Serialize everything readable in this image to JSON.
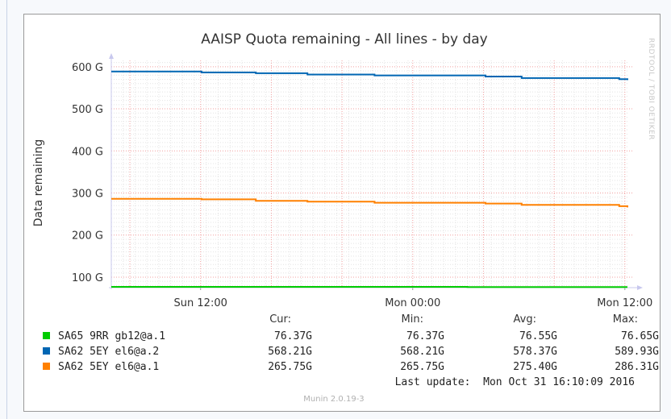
{
  "chart_data": {
    "type": "line",
    "title": "AAISP Quota remaining - All lines - by day",
    "ylabel": "Data remaining",
    "xlabel": "",
    "ylim": [
      75,
      615
    ],
    "xlim": [
      0,
      100
    ],
    "yticks": [
      {
        "value": 100,
        "label": "100 G"
      },
      {
        "value": 200,
        "label": "200 G"
      },
      {
        "value": 300,
        "label": "300 G"
      },
      {
        "value": 400,
        "label": "400 G"
      },
      {
        "value": 500,
        "label": "500 G"
      },
      {
        "value": 600,
        "label": "600 G"
      }
    ],
    "xticks": [
      {
        "value": 17.3,
        "label": "Sun 12:00"
      },
      {
        "value": 58.4,
        "label": "Mon 00:00"
      },
      {
        "value": 99.5,
        "label": "Mon 12:00"
      }
    ],
    "side_text": "RRDTOOL / TOBI OETIKER",
    "footer": "Munin 2.0.19-3",
    "series": [
      {
        "name": "SA65 9RR gb12@a.1",
        "color": "#00cc00",
        "x": [
          0,
          68.8,
          69.0,
          100
        ],
        "values": [
          77.0,
          77.0,
          76.4,
          76.4
        ],
        "cur": "76.37G",
        "min": "76.37G",
        "avg": "76.55G",
        "max": "76.65G"
      },
      {
        "name": "SA62 5EY el6@a.2",
        "color": "#0066b3",
        "x": [
          0,
          17.5,
          28,
          38,
          51,
          72.5,
          79.5,
          98.4,
          100
        ],
        "values": [
          588.5,
          586.5,
          584.5,
          581.5,
          579.3,
          576.7,
          573.1,
          570.6,
          568.2
        ],
        "cur": "568.21G",
        "min": "568.21G",
        "avg": "578.37G",
        "max": "589.93G"
      },
      {
        "name": "SA62 5EY el6@a.1",
        "color": "#ff8000",
        "x": [
          0,
          17.5,
          28,
          38,
          51,
          72.5,
          79.5,
          98.4,
          100
        ],
        "values": [
          286.3,
          284.8,
          281.2,
          279.3,
          276.8,
          275.0,
          271.6,
          268.5,
          265.8
        ],
        "cur": "265.75G",
        "min": "265.75G",
        "avg": "275.40G",
        "max": "286.31G"
      }
    ],
    "legend_headers": {
      "cur": "Cur:",
      "min": "Min:",
      "avg": "Avg:",
      "max": "Max:"
    },
    "last_update": "Last update:  Mon Oct 31 16:10:09 2016"
  }
}
